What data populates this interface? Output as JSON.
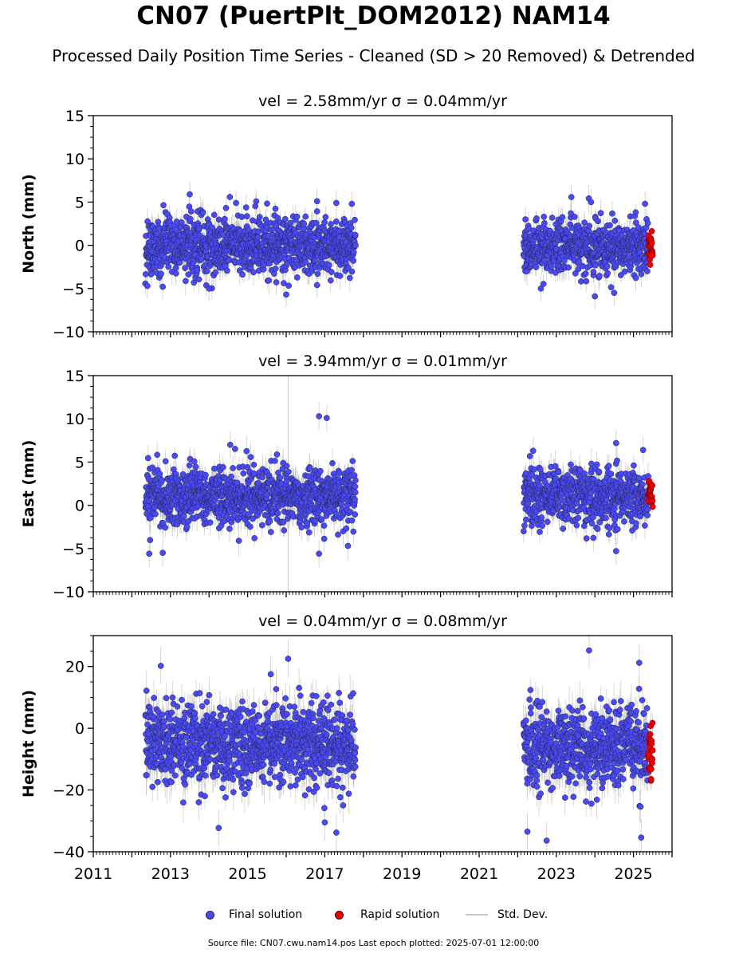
{
  "title": "CN07 (PuertPlt_DOM2012) NAM14",
  "subtitle": "Processed Daily Position Time Series - Cleaned (SD > 20 Removed) & Detrended",
  "source_text": "Source file: CN07.cwu.nam14.pos  Last epoch plotted: 2025-07-01 12:00:00",
  "legend": [
    {
      "label": "Final solution",
      "color": "#4a4af5"
    },
    {
      "label": "Rapid solution",
      "color": "#ee0000"
    },
    {
      "label": "Std. Dev.",
      "color": "#c9c9c9"
    }
  ],
  "colors": {
    "final": "#4a4af5",
    "rapid": "#ee0000",
    "stddev": "#b0b0b0",
    "edge": "#222244"
  },
  "chart_data": [
    {
      "type": "scatter",
      "component": "North",
      "title": "vel = 2.58mm/yr   σ = 0.04mm/yr",
      "ylabel": "North (mm)",
      "xlim": [
        2011,
        2026
      ],
      "ylim": [
        -10,
        15
      ],
      "yticks": [
        -10,
        -5,
        0,
        5,
        10,
        15
      ],
      "xticks": [
        2011,
        2013,
        2015,
        2017,
        2019,
        2021,
        2023,
        2025
      ],
      "segments": [
        {
          "solution": "Final solution",
          "start": 2012.35,
          "end": 2017.8,
          "mean": 0.0,
          "spread": 1.6,
          "sd": 1.2
        },
        {
          "solution": "Final solution",
          "start": 2022.15,
          "end": 2025.38,
          "mean": -0.3,
          "spread": 1.5,
          "sd": 1.2
        },
        {
          "solution": "Rapid solution",
          "start": 2025.38,
          "end": 2025.5,
          "mean": -0.2,
          "spread": 1.0,
          "sd": 0.8
        }
      ],
      "outliers": [
        [
          2013.5,
          5.9
        ],
        [
          2014.7,
          4.9
        ],
        [
          2016.8,
          5.1
        ],
        [
          2017.3,
          4.9
        ],
        [
          2017.7,
          4.8
        ],
        [
          2016.0,
          -5.7
        ],
        [
          2014.0,
          -5.0
        ],
        [
          2012.4,
          -4.7
        ],
        [
          2012.8,
          -4.8
        ],
        [
          2016.8,
          -4.6
        ],
        [
          2022.2,
          3.0
        ],
        [
          2023.9,
          5.0
        ],
        [
          2025.3,
          4.8
        ],
        [
          2024.0,
          -5.9
        ],
        [
          2024.5,
          -5.5
        ],
        [
          2022.6,
          -5.0
        ]
      ]
    },
    {
      "type": "scatter",
      "component": "East",
      "title": "vel = 3.94mm/yr   σ = 0.01mm/yr",
      "ylabel": "East (mm)",
      "xlim": [
        2011,
        2026
      ],
      "ylim": [
        -10,
        15
      ],
      "yticks": [
        -10,
        -5,
        0,
        5,
        10,
        15
      ],
      "xticks": [
        2011,
        2013,
        2015,
        2017,
        2019,
        2021,
        2023,
        2025
      ],
      "segments": [
        {
          "solution": "Final solution",
          "start": 2012.35,
          "end": 2017.8,
          "mean": 1.0,
          "spread": 1.7,
          "sd": 1.3
        },
        {
          "solution": "Final solution",
          "start": 2022.15,
          "end": 2025.38,
          "mean": 1.1,
          "spread": 1.6,
          "sd": 1.3
        },
        {
          "solution": "Rapid solution",
          "start": 2025.38,
          "end": 2025.5,
          "mean": 1.5,
          "spread": 1.1,
          "sd": 0.9
        }
      ],
      "outliers": [
        [
          2016.85,
          10.3
        ],
        [
          2017.05,
          10.1
        ],
        [
          2014.55,
          7.0
        ],
        [
          2012.45,
          -5.6
        ],
        [
          2012.8,
          -5.5
        ],
        [
          2016.85,
          -5.6
        ],
        [
          2017.6,
          -4.7
        ],
        [
          2024.55,
          7.2
        ],
        [
          2024.55,
          -5.3
        ],
        [
          2025.25,
          6.4
        ],
        [
          2022.4,
          6.3
        ]
      ]
    },
    {
      "type": "scatter",
      "component": "Height",
      "title": "vel = 0.04mm/yr   σ = 0.08mm/yr",
      "ylabel": "Height (mm)",
      "xlim": [
        2011,
        2026
      ],
      "ylim": [
        -40,
        30
      ],
      "yticks": [
        -40,
        -20,
        0,
        20
      ],
      "xticks": [
        2011,
        2013,
        2015,
        2017,
        2019,
        2021,
        2023,
        2025
      ],
      "segments": [
        {
          "solution": "Final solution",
          "start": 2012.35,
          "end": 2017.8,
          "mean": -5.0,
          "spread": 6.5,
          "sd": 5.0
        },
        {
          "solution": "Final solution",
          "start": 2022.15,
          "end": 2025.38,
          "mean": -5.5,
          "spread": 6.5,
          "sd": 5.0
        },
        {
          "solution": "Rapid solution",
          "start": 2025.38,
          "end": 2025.5,
          "mean": -7.0,
          "spread": 5.0,
          "sd": 3.5
        }
      ],
      "outliers": [
        [
          2012.75,
          20.2
        ],
        [
          2016.05,
          22.5
        ],
        [
          2015.6,
          17.5
        ],
        [
          2014.25,
          -32.3
        ],
        [
          2017.0,
          -30.5
        ],
        [
          2017.3,
          -33.8
        ],
        [
          2023.85,
          25.2
        ],
        [
          2025.15,
          21.2
        ],
        [
          2022.25,
          -33.5
        ],
        [
          2022.75,
          -36.4
        ],
        [
          2025.2,
          -35.4
        ]
      ]
    }
  ]
}
